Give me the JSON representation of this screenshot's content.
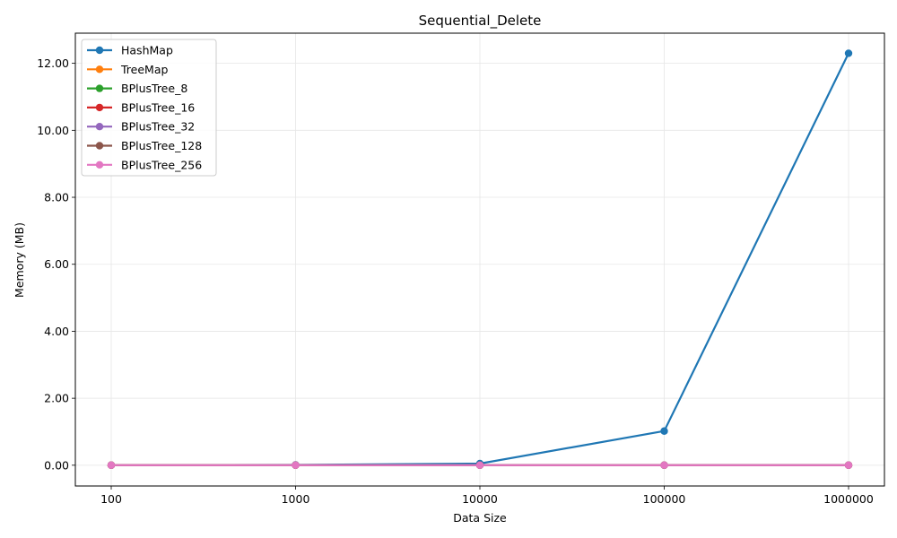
{
  "chart_data": {
    "type": "line",
    "title": "Sequential_Delete",
    "xlabel": "Data Size",
    "ylabel": "Memory (MB)",
    "x": [
      100,
      1000,
      10000,
      100000,
      1000000
    ],
    "x_tick_labels": [
      "100",
      "1000",
      "10000",
      "100000",
      "1000000"
    ],
    "x_scale": "log",
    "y_ticks": [
      0,
      2,
      4,
      6,
      8,
      10,
      12
    ],
    "y_tick_labels": [
      "0.00",
      "2.00",
      "4.00",
      "6.00",
      "8.00",
      "10.00",
      "12.00"
    ],
    "ylim": [
      -0.62,
      12.9
    ],
    "grid": true,
    "legend_position": "top-left",
    "series": [
      {
        "name": "HashMap",
        "color": "#1f77b4",
        "values": [
          0.0,
          0.01,
          0.05,
          1.02,
          12.3
        ]
      },
      {
        "name": "TreeMap",
        "color": "#ff7f0e",
        "values": [
          0.0,
          0.0,
          0.0,
          0.0,
          0.0
        ]
      },
      {
        "name": "BPlusTree_8",
        "color": "#2ca02c",
        "values": [
          0.0,
          0.0,
          0.0,
          0.0,
          0.0
        ]
      },
      {
        "name": "BPlusTree_16",
        "color": "#d62728",
        "values": [
          0.0,
          0.0,
          0.0,
          0.0,
          0.0
        ]
      },
      {
        "name": "BPlusTree_32",
        "color": "#9467bd",
        "values": [
          0.0,
          0.0,
          0.0,
          0.0,
          0.0
        ]
      },
      {
        "name": "BPlusTree_128",
        "color": "#8c564b",
        "values": [
          0.0,
          0.0,
          0.0,
          0.0,
          0.0
        ]
      },
      {
        "name": "BPlusTree_256",
        "color": "#e377c2",
        "values": [
          0.0,
          0.0,
          0.0,
          0.0,
          0.0
        ]
      }
    ]
  }
}
